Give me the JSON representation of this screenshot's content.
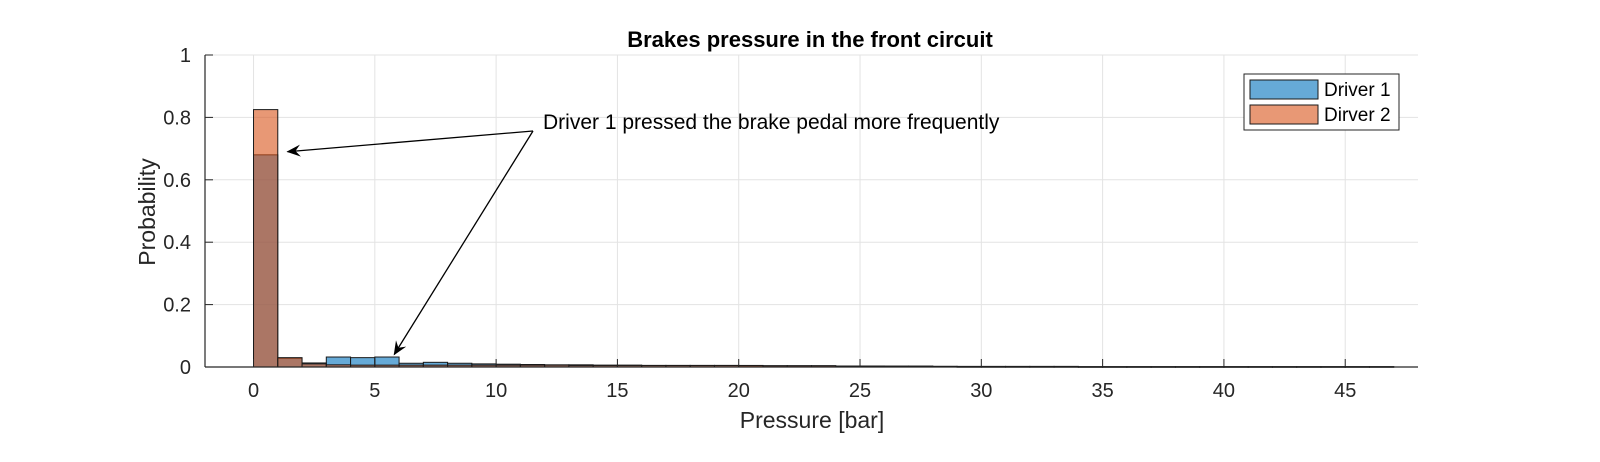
{
  "chart_data": {
    "type": "bar",
    "subtype": "histogram-overlay",
    "title": "Brakes pressure in the front circuit",
    "xlabel": "Pressure [bar]",
    "ylabel": "Probability",
    "xlim": [
      -2,
      48
    ],
    "ylim": [
      0,
      1
    ],
    "xticks": [
      0,
      5,
      10,
      15,
      20,
      25,
      30,
      35,
      40,
      45
    ],
    "xtick_labels": [
      "0",
      "5",
      "10",
      "15",
      "20",
      "25",
      "30",
      "35",
      "40",
      "45"
    ],
    "yticks": [
      0,
      0.2,
      0.4,
      0.6,
      0.8,
      1
    ],
    "ytick_labels": [
      "0",
      "0.2",
      "0.4",
      "0.6",
      "0.8",
      "1"
    ],
    "grid": true,
    "legend_position": "top-right",
    "bin_width": 1,
    "bin_edges_start": 0,
    "series": [
      {
        "name": "Driver 1",
        "color": "#0072BD",
        "face_alpha": 0.6,
        "values": [
          0.68,
          0.028,
          0.013,
          0.032,
          0.03,
          0.032,
          0.012,
          0.015,
          0.012,
          0.01,
          0.009,
          0.008,
          0.007,
          0.007,
          0.006,
          0.006,
          0.005,
          0.005,
          0.005,
          0.005,
          0.004,
          0.004,
          0.004,
          0.004,
          0.003,
          0.003,
          0.003,
          0.003,
          0.002,
          0.002,
          0.002,
          0.002,
          0.002,
          0.002,
          0.001,
          0.001,
          0.001,
          0.001,
          0.001,
          0.001,
          0.001,
          0.001,
          0.001,
          0.001,
          0.001,
          0.001,
          0.001
        ]
      },
      {
        "name": "Dirver 2",
        "color": "#D95319",
        "face_alpha": 0.6,
        "values": [
          0.825,
          0.03,
          0.01,
          0.007,
          0.006,
          0.006,
          0.006,
          0.006,
          0.006,
          0.006,
          0.006,
          0.006,
          0.006,
          0.005,
          0.005,
          0.005,
          0.005,
          0.005,
          0.005,
          0.005,
          0.005,
          0.004,
          0.004,
          0.004,
          0.003,
          0.003,
          0.002,
          0.002,
          0.002,
          0.001,
          0.001,
          0.001,
          0.001,
          0.001,
          0.001,
          0.001,
          0.001,
          0.001,
          0.001,
          0.001,
          0.001,
          0.001,
          0.001,
          0.001,
          0.001,
          0.001,
          0.001
        ]
      }
    ],
    "annotation": {
      "text": "Driver 1 pressed the brake pedal more frequently",
      "arrow_targets": [
        {
          "x": 1.4,
          "y": 0.69
        },
        {
          "x": 5.8,
          "y": 0.04
        }
      ]
    }
  }
}
